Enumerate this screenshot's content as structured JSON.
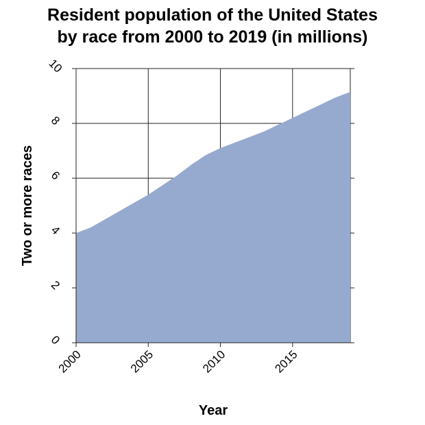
{
  "chart_data": {
    "type": "area",
    "title_line1": "Resident population of the United States",
    "title_line2": "by race from 2000 to 2019 (in millions)",
    "xlabel": "Year",
    "ylabel": "Two or more races",
    "xlim": [
      2000,
      2019
    ],
    "ylim": [
      0,
      10
    ],
    "x_ticks": [
      2000,
      2005,
      2010,
      2015
    ],
    "x_tick_labels": [
      "2000",
      "2005",
      "2010",
      "2015"
    ],
    "y_ticks": [
      0,
      2,
      4,
      6,
      8,
      10
    ],
    "y_tick_labels": [
      "0",
      "2",
      "4",
      "6",
      "8",
      "10"
    ],
    "grid": true,
    "fill_color": "#96aad0",
    "series": [
      {
        "x": [
          2000,
          2001,
          2002,
          2003,
          2004,
          2005,
          2006,
          2007,
          2008,
          2009,
          2010,
          2011,
          2012,
          2013,
          2014,
          2015,
          2016,
          2017,
          2018,
          2019
        ],
        "values": [
          4.0,
          4.2,
          4.5,
          4.8,
          5.1,
          5.4,
          5.75,
          6.1,
          6.5,
          6.85,
          7.1,
          7.3,
          7.5,
          7.7,
          7.95,
          8.2,
          8.45,
          8.7,
          8.95,
          9.15
        ]
      }
    ]
  }
}
